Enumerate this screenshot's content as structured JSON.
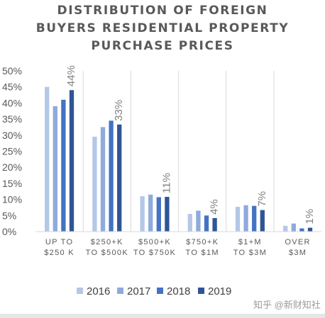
{
  "title_lines": [
    "DISTRIBUTION OF FOREIGN",
    "BUYERS RESIDENTIAL PROPERTY",
    "PURCHASE PRICES"
  ],
  "watermark": "知乎 @新财知社",
  "chart_data": {
    "type": "bar",
    "title": "DISTRIBUTION OF FOREIGN BUYERS RESIDENTIAL PROPERTY PURCHASE PRICES",
    "categories": [
      [
        "UP TO",
        "$250 K"
      ],
      [
        "$250+K",
        "TO $500K"
      ],
      [
        "$500+K",
        "TO $750K"
      ],
      [
        "$750+K",
        "TO $1M"
      ],
      [
        "$1+M",
        "TO $3M"
      ],
      [
        "OVER",
        "$3M"
      ]
    ],
    "series": [
      {
        "name": "2016",
        "color": "#b4c7e7",
        "values": [
          45,
          29.5,
          11,
          5.5,
          7.7,
          1.8
        ]
      },
      {
        "name": "2017",
        "color": "#8faadc",
        "values": [
          39,
          32.5,
          11.5,
          6.5,
          8.2,
          2.5
        ]
      },
      {
        "name": "2018",
        "color": "#4472c4",
        "values": [
          41,
          34.5,
          10.7,
          5,
          8,
          1
        ]
      },
      {
        "name": "2019",
        "color": "#2f5597",
        "values": [
          44,
          33.3,
          10.8,
          4.2,
          6.7,
          1.2
        ]
      }
    ],
    "data_labels": [
      "44%",
      "33%",
      "11%",
      "4%",
      "7%",
      "1%"
    ],
    "yticks": [
      "0%",
      "5%",
      "10%",
      "15%",
      "20%",
      "25%",
      "30%",
      "35%",
      "40%",
      "45%",
      "50%"
    ],
    "ylim": [
      0,
      50
    ],
    "legend_position": "bottom",
    "separator_color": "#d9d9d9"
  }
}
